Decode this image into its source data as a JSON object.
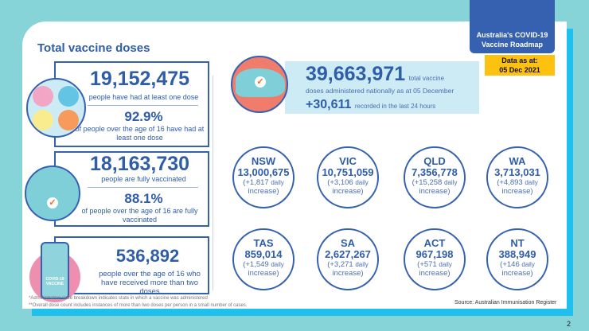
{
  "header": {
    "roadmap_label": "Australia's COVID-19 Vaccine Roadmap",
    "date_label": "Data as at:",
    "date_value": "05 Dec 2021"
  },
  "title": "Total vaccine doses",
  "at_least_one": {
    "value": "19,152,475",
    "desc": "people have had at least one dose",
    "percent": "92.9%",
    "percent_desc": "of people over the age of 16 have had at least one dose"
  },
  "fully": {
    "value": "18,163,730",
    "desc": "people are fully vaccinated",
    "percent": "88.1%",
    "percent_desc": "of people over the age of 16 are fully vaccinated"
  },
  "more_than_two": {
    "value": "536,892",
    "desc": "people over the age of 16 who have received more than two doses",
    "vial_label": "COVID-19 VACCINE"
  },
  "national": {
    "total": "39,663,971",
    "total_suffix": "total vaccine",
    "total_desc": "doses administered nationally as at 05 December",
    "daily": "+30,611",
    "daily_desc": "recorded in the last 24 hours"
  },
  "states": [
    {
      "name": "NSW",
      "total": "13,000,675",
      "increase": "(+1,817",
      "daily": "daily",
      "tail": "increase)"
    },
    {
      "name": "VIC",
      "total": "10,751,059",
      "increase": "(+3,106",
      "daily": "daily",
      "tail": "increase)"
    },
    {
      "name": "QLD",
      "total": "7,356,778",
      "increase": "(+15,258",
      "daily": "daily",
      "tail": "increase)"
    },
    {
      "name": "WA",
      "total": "3,713,031",
      "increase": "(+4,893",
      "daily": "daily",
      "tail": "increase)"
    },
    {
      "name": "TAS",
      "total": "859,014",
      "increase": "(+1,549",
      "daily": "daily",
      "tail": "increase)"
    },
    {
      "name": "SA",
      "total": "2,627,267",
      "increase": "(+3,271",
      "daily": "daily",
      "tail": "increase)"
    },
    {
      "name": "ACT",
      "total": "967,198",
      "increase": "(+571",
      "daily": "daily",
      "tail": "increase)"
    },
    {
      "name": "NT",
      "total": "388,949",
      "increase": "(+146",
      "daily": "daily",
      "tail": "increase)"
    }
  ],
  "footnotes": [
    "*Administration state breakdown indicates state in which a vaccine was administered",
    "**Overall dose count includes instances of more than two doses per person in a small number of cases."
  ],
  "source": "Source: Australian Immunisation Register",
  "page_number": "2"
}
